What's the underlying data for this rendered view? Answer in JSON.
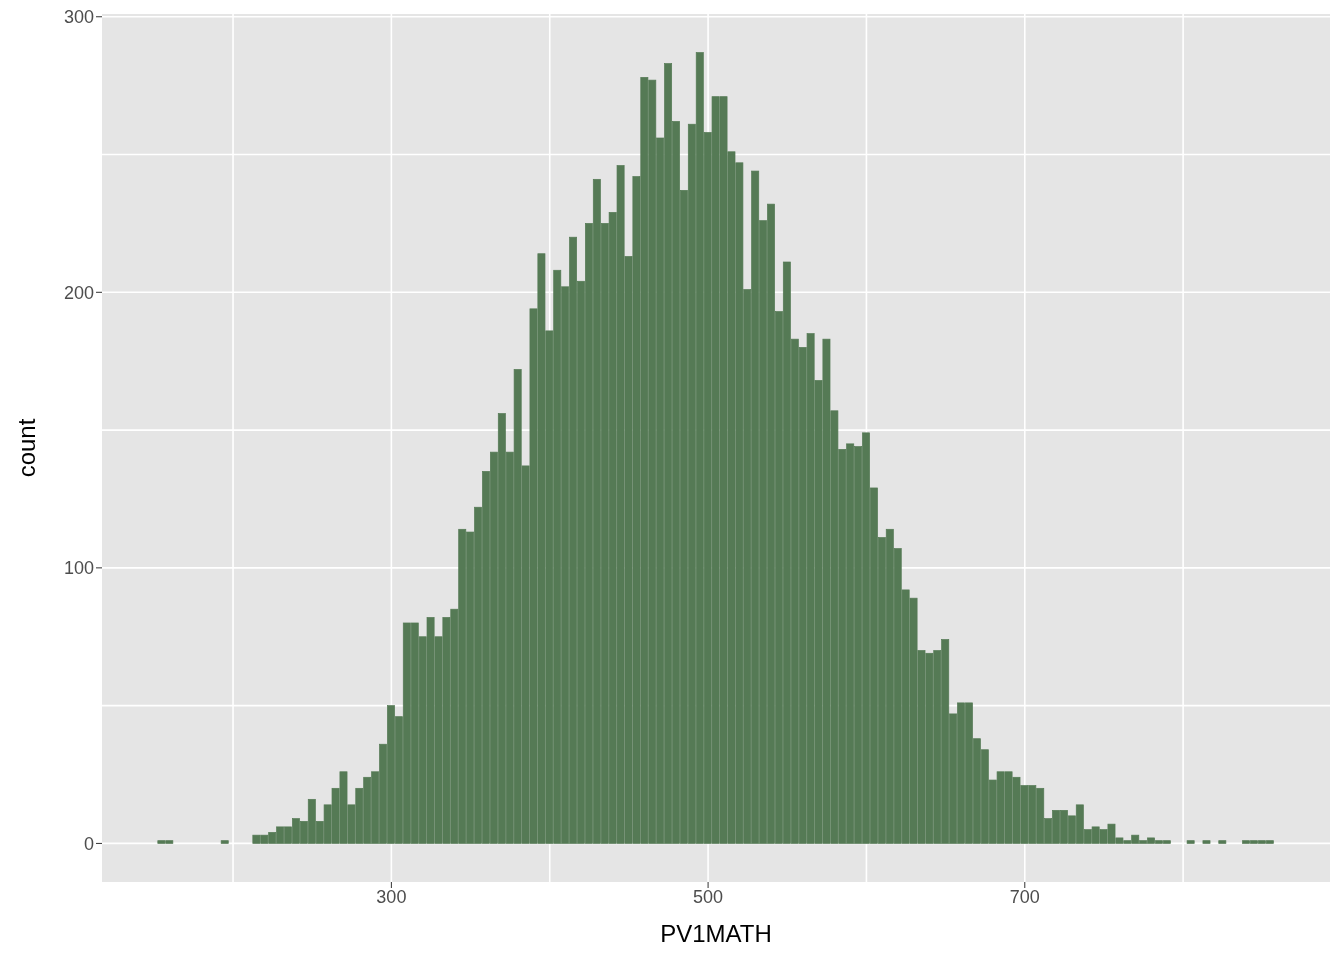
{
  "chart_data": {
    "type": "histogram",
    "xlabel": "PV1MATH",
    "ylabel": "count",
    "color": "#557a55",
    "grid": true,
    "legend": false,
    "bins": [
      152.5,
      157.5,
      162.5,
      167.5,
      172.5,
      177.5,
      182.5,
      187.5,
      192.5,
      197.5,
      202.5,
      207.5,
      212.5,
      217.5,
      222.5,
      227.5,
      232.5,
      237.5,
      242.5,
      247.5,
      252.5,
      257.5,
      262.5,
      267.5,
      272.5,
      277.5,
      282.5,
      287.5,
      292.5,
      297.5,
      302.5,
      307.5,
      312.5,
      317.5,
      322.5,
      327.5,
      332.5,
      337.5,
      342.5,
      347.5,
      352.5,
      357.5,
      362.5,
      367.5,
      372.5,
      377.5,
      382.5,
      387.5,
      392.5,
      397.5,
      402.5,
      407.5,
      412.5,
      417.5,
      422.5,
      427.5,
      432.5,
      437.5,
      442.5,
      447.5,
      452.5,
      457.5,
      462.5,
      467.5,
      472.5,
      477.5,
      482.5,
      487.5,
      492.5,
      497.5,
      502.5,
      507.5,
      512.5,
      517.5,
      522.5,
      527.5,
      532.5,
      537.5,
      542.5,
      547.5,
      552.5,
      557.5,
      562.5,
      567.5,
      572.5,
      577.5,
      582.5,
      587.5,
      592.5,
      597.5,
      602.5,
      607.5,
      612.5,
      617.5,
      622.5,
      627.5,
      632.5,
      637.5,
      642.5,
      647.5,
      652.5,
      657.5,
      662.5,
      667.5,
      672.5,
      677.5,
      682.5,
      687.5,
      692.5,
      697.5,
      702.5,
      707.5,
      712.5,
      717.5,
      722.5,
      727.5,
      732.5,
      737.5,
      742.5,
      747.5,
      752.5,
      757.5,
      762.5,
      767.5,
      772.5,
      777.5,
      782.5,
      787.5,
      792.5,
      797.5,
      802.5,
      807.5,
      812.5,
      817.5,
      822.5,
      827.5,
      832.5,
      837.5,
      842.5,
      847.5,
      852.5,
      857.5
    ],
    "values": [
      1,
      1,
      0,
      0,
      0,
      0,
      0,
      0,
      1,
      0,
      0,
      0,
      3,
      3,
      4,
      6,
      6,
      9,
      8,
      16,
      8,
      14,
      20,
      26,
      14,
      20,
      24,
      26,
      36,
      50,
      46,
      80,
      80,
      75,
      82,
      75,
      82,
      85,
      114,
      113,
      122,
      135,
      142,
      156,
      142,
      172,
      137,
      194,
      214,
      186,
      208,
      202,
      220,
      204,
      225,
      241,
      225,
      229,
      246,
      213,
      242,
      278,
      277,
      256,
      283,
      262,
      237,
      261,
      287,
      258,
      271,
      271,
      251,
      247,
      201,
      244,
      226,
      232,
      193,
      211,
      183,
      180,
      185,
      168,
      183,
      157,
      143,
      145,
      144,
      149,
      129,
      111,
      114,
      107,
      92,
      89,
      70,
      69,
      70,
      74,
      47,
      51,
      51,
      38,
      34,
      23,
      26,
      26,
      24,
      21,
      21,
      20,
      9,
      12,
      12,
      10,
      14,
      5,
      6,
      5,
      7,
      2,
      1,
      3,
      1,
      2,
      1,
      1,
      0,
      0,
      1,
      0,
      1,
      0,
      1,
      0,
      0,
      1,
      1,
      1,
      1
    ],
    "xlim": [
      117.25,
      892.75
    ],
    "xticks": [
      {
        "value": 200,
        "label": null
      },
      300,
      {
        "value": 400,
        "label": null
      },
      500,
      {
        "value": 600,
        "label": null
      },
      700,
      {
        "value": 800,
        "label": null
      }
    ],
    "ylim": [
      -14,
      301
    ],
    "yticks": [
      0,
      {
        "value": 50,
        "label": null
      },
      100,
      {
        "value": 150,
        "label": null
      },
      200,
      {
        "value": 250,
        "label": null
      },
      300
    ]
  }
}
